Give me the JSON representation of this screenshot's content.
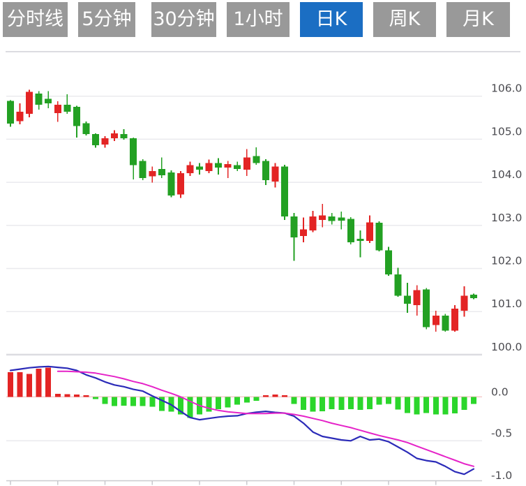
{
  "toolbar": {
    "tabs": [
      {
        "label": "分时线",
        "active": false
      },
      {
        "label": "5分钟",
        "active": false
      },
      {
        "label": "30分钟",
        "active": false
      },
      {
        "label": "1小时",
        "active": false
      },
      {
        "label": "日K",
        "active": true
      },
      {
        "label": "周K",
        "active": false
      },
      {
        "label": "月K",
        "active": false
      }
    ]
  },
  "colors": {
    "tab_bg": "#999999",
    "tab_active_bg": "#1b6ec3",
    "tab_text": "#ffffff",
    "candle_up_red": "#e32424",
    "candle_down_green": "#23a023",
    "macd_hist_pos": "#e32424",
    "macd_hist_neg": "#2bd62b",
    "dif_line_blue": "#2b2bb8",
    "dea_line_magenta": "#e523c8",
    "grid_line": "#eaeaee",
    "panel_border": "#dcdce1",
    "zero_line": "#f0b2b2",
    "axis_line": "#c9c9ce",
    "axis_text": "#4b4b50"
  },
  "price_axis": {
    "ticks": [
      "106.0",
      "105.0",
      "104.0",
      "103.0",
      "102.0",
      "101.0",
      "100.0"
    ]
  },
  "macd_axis": {
    "ticks": [
      "0.0",
      "-0.5",
      "-1.0"
    ]
  },
  "chart_data": [
    {
      "type": "candlestick",
      "series_name": "日K",
      "ylabel": "price",
      "ylim": [
        100.0,
        106.0
      ],
      "grid": true,
      "x_tick_candle_indices": [
        1,
        6,
        11,
        16,
        21,
        26,
        31,
        36,
        41,
        46
      ],
      "ohlc": [
        [
          105.89,
          105.91,
          105.29,
          105.36
        ],
        [
          105.42,
          105.83,
          105.35,
          105.64
        ],
        [
          105.59,
          106.15,
          105.51,
          106.1
        ],
        [
          106.06,
          106.12,
          105.69,
          105.8
        ],
        [
          105.94,
          106.12,
          105.72,
          105.83
        ],
        [
          105.61,
          105.88,
          105.4,
          105.8
        ],
        [
          105.8,
          106.04,
          105.59,
          105.64
        ],
        [
          105.75,
          105.78,
          105.04,
          105.31
        ],
        [
          105.37,
          105.41,
          105.09,
          105.12
        ],
        [
          105.12,
          105.14,
          104.8,
          104.86
        ],
        [
          104.88,
          105.07,
          104.8,
          105.02
        ],
        [
          105.02,
          105.21,
          104.96,
          105.14
        ],
        [
          105.12,
          105.23,
          104.99,
          105.02
        ],
        [
          105.02,
          105.04,
          104.07,
          104.4
        ],
        [
          104.5,
          104.54,
          104.05,
          104.1
        ],
        [
          104.14,
          104.37,
          103.99,
          104.26
        ],
        [
          104.31,
          104.58,
          104.1,
          104.16
        ],
        [
          104.23,
          104.28,
          103.65,
          103.69
        ],
        [
          103.72,
          104.26,
          103.64,
          104.21
        ],
        [
          104.21,
          104.48,
          104.15,
          104.4
        ],
        [
          104.37,
          104.45,
          104.18,
          104.29
        ],
        [
          104.26,
          104.53,
          104.21,
          104.45
        ],
        [
          104.45,
          104.56,
          104.18,
          104.34
        ],
        [
          104.34,
          104.5,
          104.1,
          104.42
        ],
        [
          104.4,
          104.48,
          104.26,
          104.31
        ],
        [
          104.29,
          104.77,
          104.15,
          104.58
        ],
        [
          104.61,
          104.81,
          104.41,
          104.45
        ],
        [
          104.5,
          104.54,
          103.94,
          104.05
        ],
        [
          104.02,
          104.45,
          103.88,
          104.37
        ],
        [
          104.37,
          104.41,
          103.13,
          103.21
        ],
        [
          103.21,
          103.29,
          102.18,
          102.72
        ],
        [
          102.75,
          103.18,
          102.61,
          102.91
        ],
        [
          102.88,
          103.34,
          102.84,
          103.21
        ],
        [
          103.13,
          103.5,
          102.96,
          103.23
        ],
        [
          103.21,
          103.29,
          103.02,
          103.1
        ],
        [
          103.18,
          103.32,
          102.91,
          103.11
        ],
        [
          103.15,
          103.19,
          102.56,
          102.61
        ],
        [
          102.69,
          102.88,
          102.26,
          102.64
        ],
        [
          102.64,
          103.23,
          102.59,
          103.07
        ],
        [
          103.06,
          103.09,
          102.4,
          102.42
        ],
        [
          102.42,
          102.5,
          101.83,
          101.86
        ],
        [
          101.86,
          102.02,
          101.34,
          101.37
        ],
        [
          101.37,
          101.67,
          100.97,
          101.18
        ],
        [
          101.15,
          101.61,
          100.91,
          101.5
        ],
        [
          101.51,
          101.55,
          100.59,
          100.64
        ],
        [
          100.69,
          101.02,
          100.53,
          100.91
        ],
        [
          100.91,
          100.95,
          100.53,
          100.56
        ],
        [
          100.56,
          101.15,
          100.53,
          101.07
        ],
        [
          101.02,
          101.59,
          100.88,
          101.37
        ],
        [
          101.39,
          101.42,
          101.29,
          101.31
        ]
      ]
    },
    {
      "type": "macd",
      "ylim": [
        -1.0,
        0.4
      ],
      "hist": [
        0.28,
        0.28,
        0.26,
        0.32,
        0.33,
        0.034,
        0.03,
        0.025,
        0.013,
        -0.027,
        -0.08,
        -0.106,
        -0.1,
        -0.106,
        -0.106,
        -0.114,
        -0.16,
        -0.17,
        -0.2,
        -0.24,
        -0.2,
        -0.17,
        -0.14,
        -0.12,
        -0.09,
        -0.065,
        -0.045,
        0.02,
        0.025,
        0.017,
        -0.08,
        -0.148,
        -0.168,
        -0.165,
        -0.14,
        -0.15,
        -0.14,
        -0.15,
        -0.14,
        -0.09,
        -0.08,
        -0.145,
        -0.185,
        -0.2,
        -0.185,
        -0.2,
        -0.2,
        -0.19,
        -0.15,
        -0.08
      ],
      "dif": [
        0.3,
        0.315,
        0.33,
        0.34,
        0.345,
        0.335,
        0.325,
        0.3,
        0.25,
        0.215,
        0.17,
        0.135,
        0.115,
        0.085,
        0.065,
        0.01,
        -0.04,
        -0.09,
        -0.165,
        -0.235,
        -0.26,
        -0.245,
        -0.23,
        -0.22,
        -0.215,
        -0.19,
        -0.175,
        -0.165,
        -0.177,
        -0.185,
        -0.22,
        -0.3,
        -0.4,
        -0.45,
        -0.47,
        -0.49,
        -0.5,
        -0.45,
        -0.49,
        -0.48,
        -0.51,
        -0.57,
        -0.63,
        -0.7,
        -0.725,
        -0.74,
        -0.79,
        -0.85,
        -0.88,
        -0.82
      ],
      "dea": [
        null,
        null,
        null,
        null,
        null,
        0.29,
        0.29,
        0.285,
        0.28,
        0.27,
        0.25,
        0.23,
        0.205,
        0.175,
        0.15,
        0.115,
        0.075,
        0.04,
        0.0,
        -0.05,
        -0.1,
        -0.13,
        -0.155,
        -0.17,
        -0.18,
        -0.19,
        -0.19,
        -0.19,
        -0.185,
        -0.185,
        -0.2,
        -0.22,
        -0.245,
        -0.27,
        -0.3,
        -0.325,
        -0.35,
        -0.38,
        -0.41,
        -0.44,
        -0.465,
        -0.49,
        -0.52,
        -0.56,
        -0.6,
        -0.64,
        -0.68,
        -0.72,
        -0.76,
        -0.79
      ]
    }
  ]
}
